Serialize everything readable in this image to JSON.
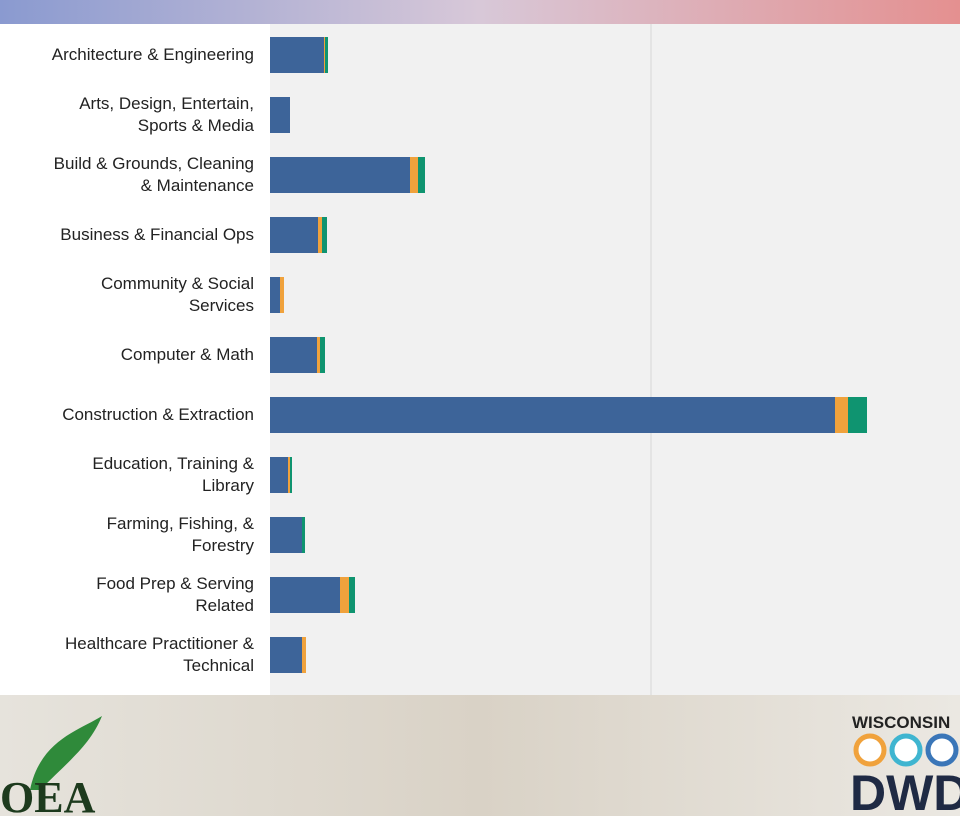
{
  "chart_data": {
    "type": "stacked-bar-horizontal",
    "categories": [
      "Architecture & Engineering",
      "Arts, Design, Entertain,\nSports & Media",
      "Build & Grounds, Cleaning\n& Maintenance",
      "Business & Financial Ops",
      "Community & Social\nServices",
      "Computer & Math",
      "Construction & Extraction",
      "Education, Training &\nLibrary",
      "Farming, Fishing, &\nForestry",
      "Food Prep & Serving\nRelated",
      "Healthcare Practitioner &\nTechnical"
    ],
    "series": [
      {
        "color": "#3d6499",
        "values": [
          54,
          20,
          140,
          48,
          10,
          47,
          565,
          18,
          32,
          70,
          32
        ]
      },
      {
        "color": "#f0a23c",
        "values": [
          1,
          0,
          8,
          4,
          4,
          3,
          13,
          2,
          0,
          9,
          4
        ]
      },
      {
        "color": "#0f9470",
        "values": [
          3,
          0,
          7,
          5,
          0,
          5,
          19,
          2,
          3,
          6,
          0
        ]
      }
    ],
    "xlim": [
      0,
      690
    ],
    "xticks": [
      381
    ],
    "grid": true
  },
  "logos": {
    "left": "OEA",
    "right_top": "WISCONSIN",
    "right_main": "DWD"
  }
}
